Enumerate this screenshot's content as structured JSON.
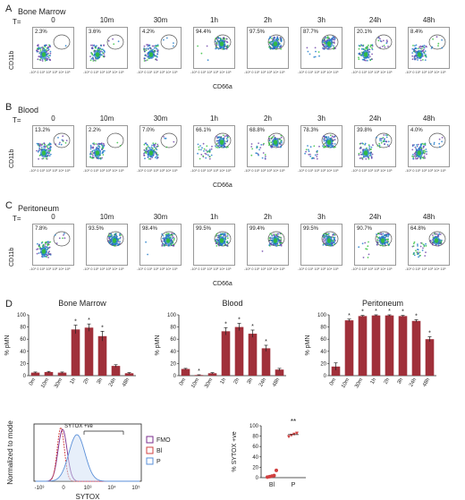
{
  "timepoint_prefix": "T=",
  "timepoints": [
    "0",
    "10m",
    "30m",
    "1h",
    "2h",
    "3h",
    "24h",
    "48h"
  ],
  "marker_y": "CD11b",
  "marker_x": "CD66a",
  "flow_axis_ticks": "-10¹ 0 10¹ 10² 10³ 10⁴ 10⁵",
  "sections": [
    {
      "letter": "A",
      "tissue": "Bone Marrow",
      "percents": [
        "2.3%",
        "3.6%",
        "4.2%",
        "94.4%",
        "97.5%",
        "87.7%",
        "20.1%",
        "8.4%"
      ]
    },
    {
      "letter": "B",
      "tissue": "Blood",
      "percents": [
        "13.2%",
        "2.2%",
        "7.0%",
        "66.1%",
        "68.8%",
        "78.3%",
        "39.8%",
        "4.0%"
      ]
    },
    {
      "letter": "C",
      "tissue": "Peritoneum",
      "percents": [
        "7.8%",
        "93.5%",
        "98.4%",
        "99.5%",
        "99.4%",
        "99.5%",
        "90.7%",
        "64.8%"
      ]
    }
  ],
  "panel_d": {
    "letter": "D",
    "ylabel": "% pMN",
    "categories": [
      "0m",
      "10m",
      "30m",
      "1h",
      "2h",
      "3h",
      "24h",
      "48h"
    ],
    "bar_color": "#a0303a",
    "charts": [
      {
        "title": "Bone Marrow",
        "values": [
          5,
          6,
          5,
          76,
          79,
          65,
          16,
          4
        ],
        "errors": [
          1,
          1,
          1,
          7,
          6,
          8,
          2,
          1
        ],
        "star": [
          false,
          false,
          false,
          true,
          true,
          true,
          false,
          false
        ],
        "ylim": [
          0,
          100
        ],
        "yticks": [
          "0",
          "20",
          "40",
          "60",
          "80",
          "100"
        ]
      },
      {
        "title": "Blood",
        "values": [
          11,
          1,
          4,
          73,
          80,
          69,
          45,
          10
        ],
        "errors": [
          1,
          0.5,
          1,
          6,
          6,
          6,
          5,
          2
        ],
        "star": [
          false,
          true,
          false,
          true,
          true,
          true,
          true,
          false
        ],
        "ylim": [
          0,
          100
        ],
        "yticks": [
          "0",
          "20",
          "40",
          "60",
          "80",
          "100"
        ]
      },
      {
        "title": "Peritoneum",
        "values": [
          15,
          91,
          98,
          99,
          99,
          98,
          90,
          60
        ],
        "errors": [
          6,
          2,
          1,
          1,
          1,
          1,
          2,
          4
        ],
        "star": [
          false,
          true,
          true,
          true,
          true,
          true,
          true,
          true
        ],
        "ylim": [
          0,
          100
        ],
        "yticks": [
          "0",
          "20",
          "40",
          "60",
          "80",
          "100"
        ]
      }
    ]
  },
  "histogram": {
    "ylabel": "Normalized to mode",
    "xlabel": "SYTOX",
    "gate_label": "SYTOX +ve",
    "xticks": [
      "-10³",
      "0",
      "10³",
      "10⁴",
      "10⁵"
    ],
    "legend": [
      {
        "name": "FMO",
        "color": "#7b2d8e"
      },
      {
        "name": "Bl",
        "color": "#d04040"
      },
      {
        "name": "P",
        "color": "#5a8fd8"
      }
    ]
  },
  "dotplot": {
    "ylabel": "% SYTOX +ve",
    "categories": [
      "Bl",
      "P"
    ],
    "yticks": [
      "0",
      "20",
      "40",
      "60",
      "80",
      "100"
    ],
    "ylim": [
      0,
      100
    ],
    "sig": "**",
    "bl_points": [
      1,
      2,
      3,
      4,
      14
    ],
    "p_points": [
      79,
      82,
      84,
      86
    ],
    "bl_color": "#d04040",
    "p_color": "#d04040"
  },
  "colors": {
    "density_hi": "#2fbf3a",
    "density_mid": "#1a78c8",
    "density_lo": "#6a3fa8",
    "gate": "#555555"
  }
}
